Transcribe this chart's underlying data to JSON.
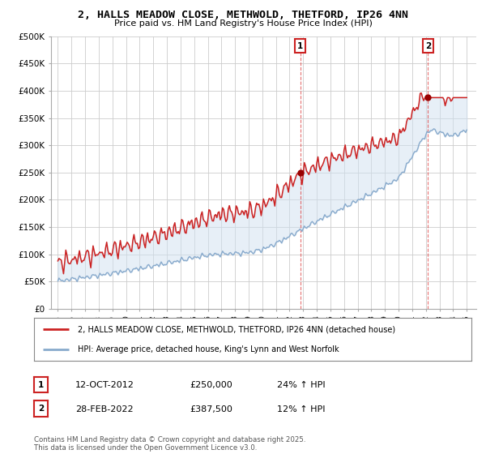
{
  "title": "2, HALLS MEADOW CLOSE, METHWOLD, THETFORD, IP26 4NN",
  "subtitle": "Price paid vs. HM Land Registry's House Price Index (HPI)",
  "ylabel_ticks": [
    "£0",
    "£50K",
    "£100K",
    "£150K",
    "£200K",
    "£250K",
    "£300K",
    "£350K",
    "£400K",
    "£450K",
    "£500K"
  ],
  "ytick_vals": [
    0,
    50000,
    100000,
    150000,
    200000,
    250000,
    300000,
    350000,
    400000,
    450000,
    500000
  ],
  "ylim": [
    0,
    500000
  ],
  "background_color": "#ffffff",
  "plot_bg_color": "#ffffff",
  "red_line_color": "#cc2222",
  "blue_line_color": "#88aacc",
  "fill_color": "#d0e0f0",
  "marker1_x": 2012.78,
  "marker1_y": 250000,
  "marker2_x": 2022.16,
  "marker2_y": 387500,
  "vline1_x": 2012.78,
  "vline2_x": 2022.16,
  "legend_label1": "2, HALLS MEADOW CLOSE, METHWOLD, THETFORD, IP26 4NN (detached house)",
  "legend_label2": "HPI: Average price, detached house, King's Lynn and West Norfolk",
  "table_row1": [
    "1",
    "12-OCT-2012",
    "£250,000",
    "24% ↑ HPI"
  ],
  "table_row2": [
    "2",
    "28-FEB-2022",
    "£387,500",
    "12% ↑ HPI"
  ],
  "footer": "Contains HM Land Registry data © Crown copyright and database right 2025.\nThis data is licensed under the Open Government Licence v3.0.",
  "xmin": 1994.5,
  "xmax": 2025.7
}
